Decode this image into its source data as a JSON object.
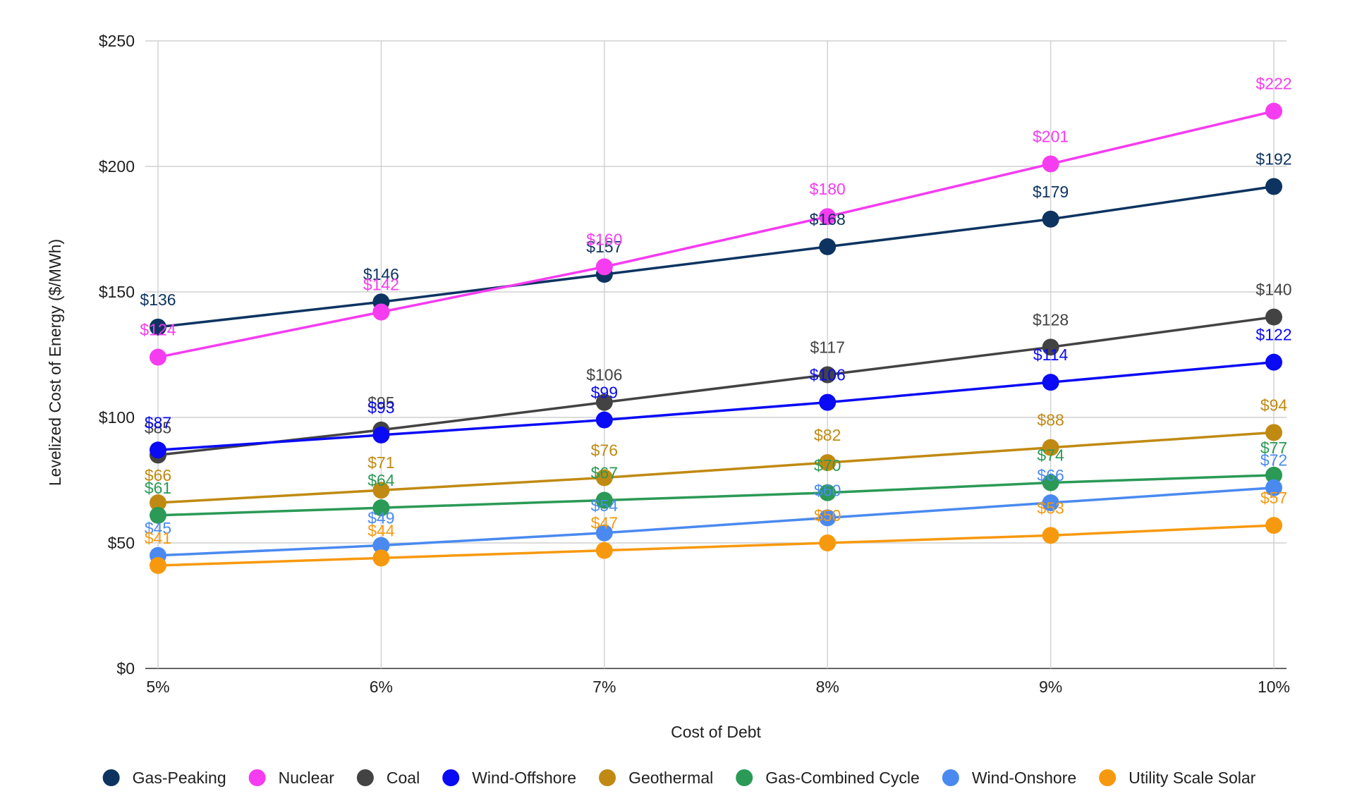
{
  "chart_data": {
    "type": "line",
    "title": "",
    "xlabel": "Cost of Debt",
    "ylabel": "Levelized Cost of Energy ($/MWh)",
    "categories": [
      "5%",
      "6%",
      "7%",
      "8%",
      "9%",
      "10%"
    ],
    "ylim": [
      0,
      250
    ],
    "yticks": [
      0,
      50,
      100,
      150,
      200,
      250
    ],
    "ytick_labels": [
      "$0",
      "$50",
      "$100",
      "$150",
      "$200",
      "$250"
    ],
    "value_prefix": "$",
    "grid": true,
    "legend_position": "bottom",
    "series": [
      {
        "name": "Gas-Peaking",
        "color": "#0d3461",
        "values": [
          136,
          146,
          157,
          168,
          179,
          192
        ]
      },
      {
        "name": "Nuclear",
        "color": "#f53cf0",
        "values": [
          124,
          142,
          160,
          180,
          201,
          222
        ]
      },
      {
        "name": "Coal",
        "color": "#434343",
        "values": [
          85,
          95,
          106,
          117,
          128,
          140
        ]
      },
      {
        "name": "Wind-Offshore",
        "color": "#0a0af5",
        "values": [
          87,
          93,
          99,
          106,
          114,
          122
        ]
      },
      {
        "name": "Geothermal",
        "color": "#c08a12",
        "values": [
          66,
          71,
          76,
          82,
          88,
          94
        ]
      },
      {
        "name": "Gas-Combined Cycle",
        "color": "#2a9a56",
        "values": [
          61,
          64,
          67,
          70,
          74,
          77
        ]
      },
      {
        "name": "Wind-Onshore",
        "color": "#4a8af0",
        "values": [
          45,
          49,
          54,
          60,
          66,
          72
        ]
      },
      {
        "name": "Utility Scale Solar",
        "color": "#f7990e",
        "values": [
          41,
          44,
          47,
          50,
          53,
          57
        ]
      }
    ]
  }
}
